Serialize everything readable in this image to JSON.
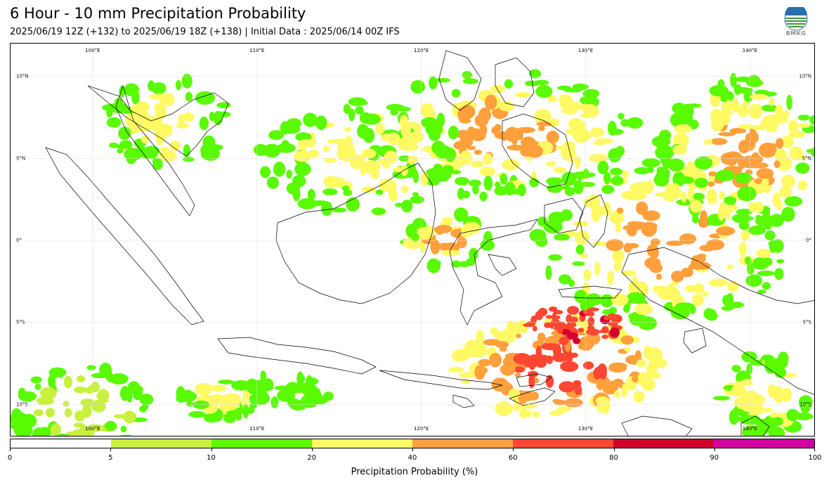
{
  "header": {
    "title": "6 Hour - 10 mm Precipitation Probability",
    "subtitle": "2025/06/19 12Z (+132) to 2025/06/19 18Z (+138) | Initial Data : 2025/06/14 00Z IFS",
    "logo_text": "BMKG"
  },
  "map": {
    "lon_range": [
      95,
      144
    ],
    "lat_range": [
      -12,
      12
    ],
    "lon_labels": [
      "100°E",
      "110°E",
      "120°E",
      "130°E",
      "140°E"
    ],
    "lat_labels": [
      "10°N",
      "5°N",
      "0°",
      "5°S",
      "10°S"
    ],
    "lon_values": [
      100,
      110,
      120,
      130,
      140
    ],
    "lat_values": [
      10,
      5,
      0,
      -5,
      -10
    ]
  },
  "legend": {
    "label": "Precipitation Probability (%)",
    "ticks": [
      "0",
      "5",
      "10",
      "20",
      "40",
      "60",
      "80",
      "90",
      "100"
    ],
    "colors": [
      "#ffffff",
      "#c8f03c",
      "#5afa00",
      "#fffa64",
      "#ffa03c",
      "#ff4632",
      "#d2002d",
      "#d200a0"
    ]
  },
  "colors": {
    "p5": "#c8f03c",
    "p10": "#5afa00",
    "p20": "#fffa64",
    "p40": "#ffa03c",
    "p60": "#ff4632",
    "p80": "#d2002d"
  }
}
